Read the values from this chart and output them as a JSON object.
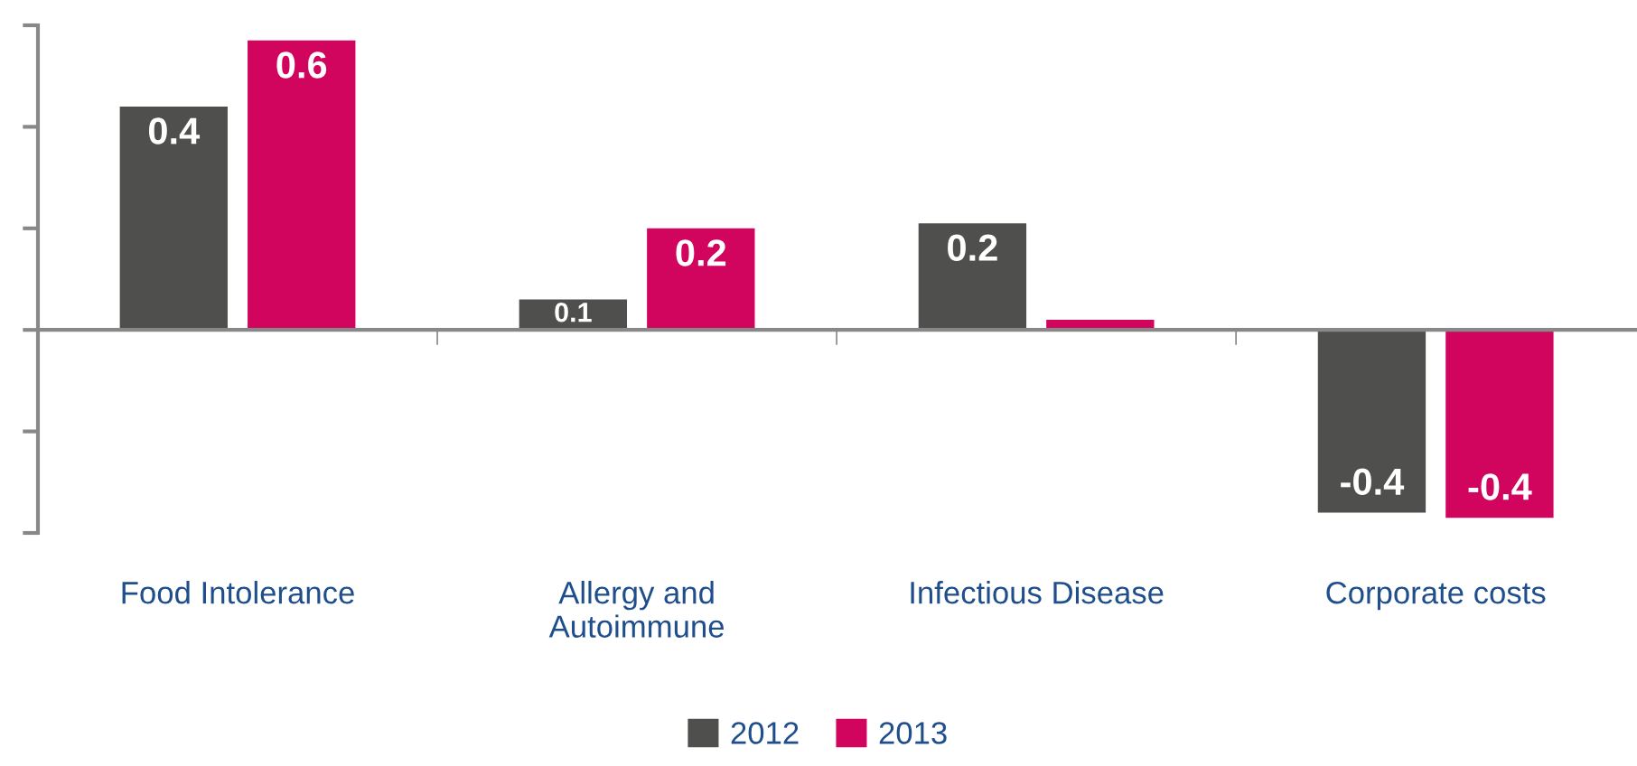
{
  "chart_data": {
    "type": "bar",
    "categories": [
      "Food Intolerance",
      "Allergy and\nAutoimmune",
      "Infectious Disease",
      "Corporate costs"
    ],
    "series": [
      {
        "name": "2012",
        "color": "#4f4f4d",
        "values": [
          0.44,
          0.06,
          0.21,
          -0.36
        ],
        "value_labels": [
          "0.4",
          "0.1",
          "0.2",
          "-0.4"
        ]
      },
      {
        "name": "2013",
        "color": "#d1045e",
        "values": [
          0.57,
          0.2,
          0.02,
          -0.37
        ],
        "value_labels": [
          "0.6",
          "0.2",
          null,
          "-0.4"
        ]
      }
    ],
    "ylim": [
      -0.4,
      0.6
    ],
    "yticks": [
      {
        "value": -0.4,
        "label": null
      },
      {
        "value": -0.2,
        "label": null
      },
      {
        "value": 0,
        "label": null
      },
      {
        "value": 0.2,
        "label": null
      },
      {
        "value": 0.4,
        "label": null
      },
      {
        "value": 0.6,
        "label": null
      }
    ],
    "legend": "bottom",
    "grid": false
  }
}
